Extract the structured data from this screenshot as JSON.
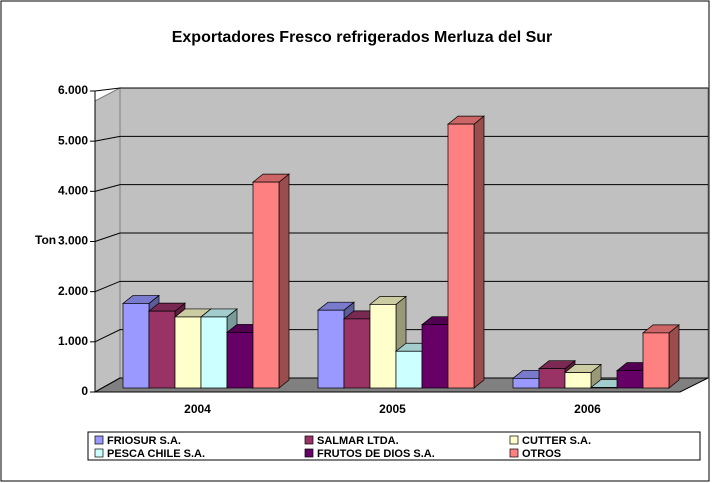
{
  "chart_data": {
    "type": "bar3d",
    "title": "Exportadores Fresco refrigerados Merluza del Sur",
    "y_label": "Ton",
    "categories": [
      "2004",
      "2005",
      "2006"
    ],
    "series": [
      {
        "name": "FRIOSUR S.A.",
        "color": "#9999ff",
        "values": [
          1750,
          1610,
          200
        ]
      },
      {
        "name": "SALMAR LTDA.",
        "color": "#993366",
        "values": [
          1590,
          1430,
          400
        ]
      },
      {
        "name": "CUTTER S.A.",
        "color": "#ffffcc",
        "values": [
          1470,
          1730,
          320
        ]
      },
      {
        "name": "PESCA CHILE S.A.",
        "color": "#ccffff",
        "values": [
          1470,
          760,
          10
        ]
      },
      {
        "name": "FRUTOS DE DIOS S.A.",
        "color": "#660066",
        "values": [
          1150,
          1310,
          360
        ]
      },
      {
        "name": "OTROS",
        "color": "#ff8080",
        "values": [
          4260,
          5460,
          1140
        ]
      }
    ],
    "ylim": [
      0,
      6000
    ],
    "yticks": [
      0,
      {
        "value": 1000,
        "label": "1.000"
      },
      {
        "value": 2000,
        "label": "2.000"
      },
      {
        "value": 3000,
        "label": "3.000"
      },
      {
        "value": 4000,
        "label": "4.000"
      },
      {
        "value": 5000,
        "label": "5.000"
      },
      {
        "value": 6000,
        "label": "6.000"
      }
    ],
    "grid": true
  }
}
